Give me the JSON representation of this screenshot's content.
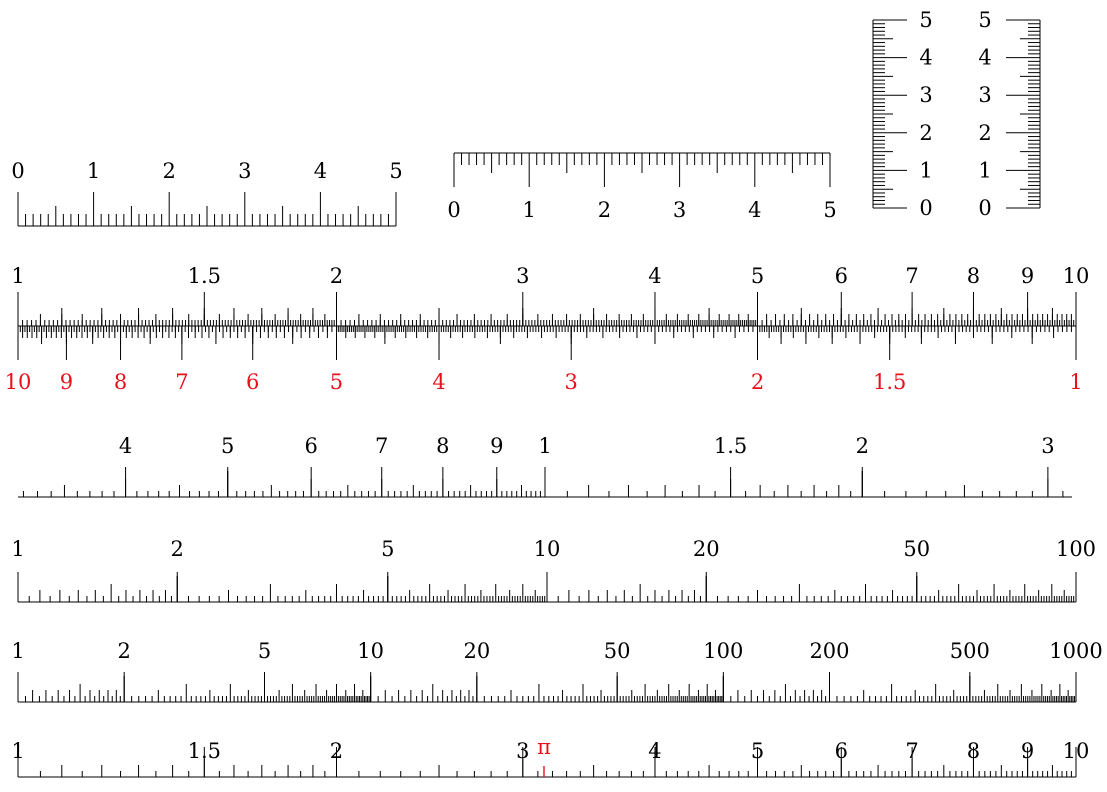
{
  "colors": {
    "ink": "#000000",
    "accent": "#e8101a"
  },
  "rulers": {
    "linear_up": {
      "labels": [
        "0",
        "1",
        "2",
        "3",
        "4",
        "5"
      ]
    },
    "linear_down": {
      "labels": [
        "0",
        "1",
        "2",
        "3",
        "4",
        "5"
      ]
    },
    "vertical_left": {
      "labels": [
        "0",
        "1",
        "2",
        "3",
        "4",
        "5"
      ]
    },
    "vertical_right": {
      "labels": [
        "0",
        "1",
        "2",
        "3",
        "4",
        "5"
      ]
    }
  },
  "log_scale": {
    "labels": [
      "1",
      "1.5",
      "2",
      "3",
      "4",
      "5",
      "6",
      "7",
      "8",
      "9",
      "10"
    ],
    "reverse_labels": [
      "10",
      "9",
      "8",
      "7",
      "6",
      "5",
      "4",
      "3",
      "2",
      "1.5",
      "1"
    ]
  },
  "folded_scale": {
    "labels": [
      "4",
      "5",
      "6",
      "7",
      "8",
      "9",
      "1",
      "1.5",
      "2",
      "3"
    ]
  },
  "two_decade_scale": {
    "labels": [
      "1",
      "2",
      "5",
      "10",
      "20",
      "50",
      "100"
    ]
  },
  "three_decade_scale": {
    "labels": [
      "1",
      "2",
      "5",
      "10",
      "20",
      "50",
      "100",
      "200",
      "500",
      "1000"
    ]
  },
  "pi_scale": {
    "labels": [
      "1",
      "1.5",
      "2",
      "3",
      "4",
      "5",
      "6",
      "7",
      "8",
      "9",
      "10"
    ],
    "pi_label": "π"
  }
}
